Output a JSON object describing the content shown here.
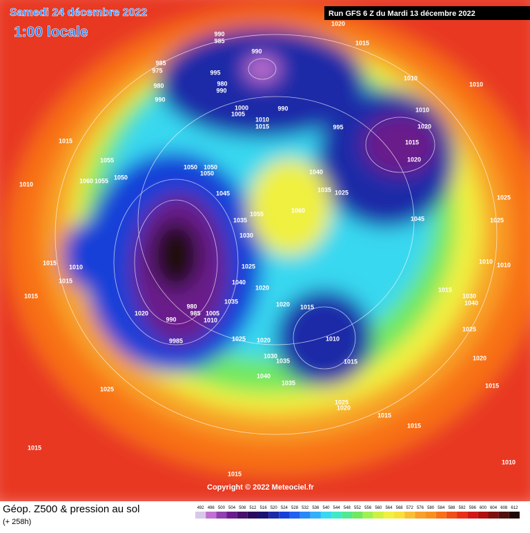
{
  "header": {
    "title": "Samedi 24 décembre 2022",
    "time": "1:00 locale",
    "run": "Run GFS 6 Z du Mardi 13 décembre 2022"
  },
  "map": {
    "copyright": "Copyright © 2022 Meteociel.fr",
    "pressure_labels": [
      1020,
      1015,
      990,
      985,
      990,
      985,
      975,
      980,
      990,
      995,
      980,
      990,
      1000,
      1005,
      990,
      1010,
      1015,
      995,
      1010,
      1010,
      1010,
      1020,
      1015,
      1020,
      1015,
      1055,
      1050,
      1060,
      1055,
      1050,
      1050,
      1050,
      1045,
      1040,
      1035,
      1025,
      1060,
      1055,
      1035,
      1030,
      1045,
      1025,
      1025,
      1010,
      1015,
      1010,
      1015,
      1015,
      1025,
      1040,
      1020,
      1020,
      1015,
      1035,
      980,
      985,
      990,
      1005,
      1010,
      1020,
      9985,
      1025,
      1020,
      1010,
      1030,
      1035,
      1015,
      1040,
      1035,
      1025,
      1020,
      1025,
      1015,
      1015,
      1015,
      1015,
      1010,
      1015,
      1020,
      1025,
      1010,
      1010,
      1040,
      1030,
      1015
    ]
  },
  "footer": {
    "title": "Géop. Z500 & pression au sol",
    "lead": "(+ 258h)",
    "colorbar": {
      "labels": [
        492,
        496,
        500,
        504,
        508,
        512,
        516,
        520,
        524,
        528,
        532,
        536,
        540,
        544,
        548,
        552,
        556,
        560,
        564,
        568,
        572,
        576,
        580,
        584,
        588,
        592,
        596,
        600,
        604,
        608,
        612
      ],
      "colors": [
        "#d8c8e8",
        "#c070d0",
        "#9040b0",
        "#6a1d8a",
        "#48106a",
        "#2a0a5a",
        "#1a1070",
        "#1a2aa8",
        "#1840d8",
        "#2060f0",
        "#2888f8",
        "#30b0f8",
        "#38d8f0",
        "#40e8c8",
        "#50e890",
        "#70e860",
        "#a0f050",
        "#d0f040",
        "#f0f040",
        "#f8e038",
        "#f8c030",
        "#f8a028",
        "#f89020",
        "#f87018",
        "#f05018",
        "#e83018",
        "#d01818",
        "#b01010",
        "#801010",
        "#501010",
        "#200808"
      ]
    }
  }
}
